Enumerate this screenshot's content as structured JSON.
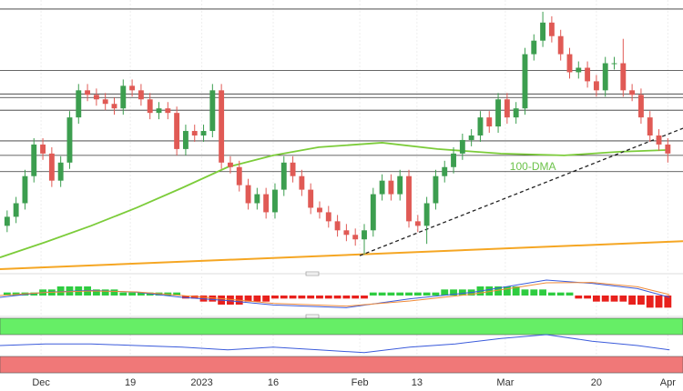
{
  "chart_data": [
    {
      "type": "candlestick",
      "xlim": [
        -0.8,
        75.7
      ],
      "ylim": [
        0,
        300
      ],
      "up_color": "#3c9e4f",
      "down_color": "#e05a55",
      "open": [
        50,
        60,
        75,
        105,
        140,
        130,
        100,
        120,
        170,
        200,
        195,
        190,
        185,
        180,
        205,
        200,
        190,
        175,
        180,
        175,
        135,
        155,
        150,
        155,
        200,
        120,
        115,
        95,
        75,
        85,
        65,
        90,
        120,
        105,
        90,
        70,
        65,
        55,
        45,
        40,
        35,
        45,
        85,
        100,
        85,
        105,
        55,
        50,
        75,
        105,
        115,
        130,
        145,
        150,
        170,
        160,
        190,
        170,
        180,
        240,
        255,
        275,
        260,
        240,
        220,
        225,
        210,
        200,
        230,
        230,
        200,
        195,
        170,
        150,
        140
      ],
      "high": [
        67,
        82,
        112,
        147,
        147,
        137,
        127,
        177,
        207,
        207,
        202,
        197,
        192,
        212,
        212,
        207,
        197,
        187,
        187,
        182,
        162,
        162,
        162,
        207,
        207,
        127,
        122,
        102,
        92,
        92,
        97,
        127,
        127,
        112,
        97,
        77,
        72,
        62,
        52,
        47,
        52,
        92,
        107,
        107,
        112,
        112,
        62,
        82,
        112,
        122,
        137,
        152,
        157,
        177,
        177,
        197,
        197,
        187,
        247,
        262,
        287,
        282,
        267,
        247,
        232,
        232,
        217,
        237,
        237,
        257,
        207,
        202,
        177,
        157,
        147
      ],
      "low": [
        43,
        53,
        68,
        98,
        123,
        93,
        93,
        113,
        163,
        188,
        183,
        178,
        173,
        173,
        193,
        183,
        168,
        168,
        168,
        128,
        128,
        143,
        143,
        148,
        113,
        108,
        88,
        68,
        68,
        58,
        58,
        83,
        98,
        83,
        63,
        58,
        48,
        38,
        33,
        28,
        18,
        38,
        78,
        78,
        78,
        48,
        43,
        30,
        68,
        98,
        108,
        123,
        138,
        143,
        153,
        153,
        163,
        163,
        173,
        233,
        248,
        253,
        233,
        213,
        213,
        203,
        193,
        193,
        223,
        193,
        188,
        163,
        143,
        133,
        120
      ],
      "close": [
        60,
        75,
        105,
        140,
        130,
        100,
        120,
        170,
        200,
        195,
        190,
        185,
        180,
        205,
        200,
        190,
        175,
        180,
        175,
        135,
        155,
        150,
        155,
        200,
        120,
        115,
        95,
        75,
        85,
        65,
        90,
        120,
        105,
        90,
        70,
        65,
        55,
        45,
        40,
        35,
        45,
        85,
        100,
        85,
        105,
        55,
        50,
        75,
        105,
        115,
        130,
        145,
        150,
        170,
        160,
        190,
        170,
        180,
        240,
        255,
        275,
        260,
        240,
        220,
        225,
        210,
        200,
        230,
        230,
        200,
        195,
        170,
        150,
        140,
        130
      ],
      "levels": [
        290,
        222,
        196,
        192,
        178,
        144,
        128,
        110
      ],
      "level_color": "#333333",
      "trendline": {
        "x": [
          39.5,
          75.7
        ],
        "values": [
          17,
          158
        ],
        "color": "#222222"
      },
      "support": {
        "x": [
          -0.8,
          75.7
        ],
        "values": [
          2,
          33
        ],
        "color": "#f5a623"
      },
      "ma": {
        "name": "100-DMA",
        "color": "#7ccc3a",
        "x": [
          -0.8,
          4.3,
          9.4,
          14.5,
          19.6,
          24.7,
          29.8,
          34.9,
          42.0,
          48.2,
          55.3,
          62.4,
          68.6,
          74.2
        ],
        "values": [
          15,
          32,
          50,
          70,
          92,
          115,
          128,
          137,
          142,
          135,
          130,
          128,
          132,
          134
        ]
      },
      "annotation": "100-DMA",
      "annotation_at": {
        "x": 56.3,
        "y": 115
      }
    },
    {
      "type": "bar",
      "xlim": [
        -0.8,
        75.7
      ],
      "ylim": [
        -6,
        6
      ],
      "up_color": "#2ecc40",
      "down_color": "#e8201c",
      "values": [
        1,
        1,
        1,
        1,
        2,
        2,
        3,
        3,
        3,
        3,
        2,
        2,
        2,
        1,
        1,
        1,
        1,
        1,
        1,
        1,
        -1,
        -1,
        -2,
        -2,
        -3,
        -3,
        -3,
        -2,
        -2,
        -2,
        -1,
        -1,
        -1,
        -1,
        -1,
        -1,
        -1,
        -1,
        -1,
        -1,
        -1,
        1,
        1,
        1,
        1,
        1,
        1,
        1,
        1,
        2,
        2,
        2,
        2,
        3,
        3,
        3,
        3,
        3,
        2,
        2,
        2,
        1,
        1,
        1,
        -1,
        -1,
        -2,
        -2,
        -2,
        -2,
        -3,
        -3,
        -4,
        -4,
        -4
      ],
      "series": [
        {
          "color": "#3b5bdb",
          "x": [
            -0.8,
            4.3,
            9.4,
            14.5,
            19.6,
            24.7,
            29.8,
            38.0,
            45.1,
            52.2,
            60.4,
            65.5,
            70.6,
            74.2
          ],
          "values": [
            -0.6,
            1.1,
            1.7,
            1.1,
            -0.6,
            -1.7,
            -3.1,
            -4,
            -1.1,
            1.1,
            5.1,
            4,
            2.3,
            -0.6
          ]
        },
        {
          "color": "#f08c3a",
          "x": [
            -0.8,
            4.3,
            9.4,
            14.5,
            19.6,
            24.7,
            29.8,
            38.0,
            45.1,
            52.2,
            60.4,
            65.5,
            70.6,
            74.2
          ],
          "values": [
            0,
            1.0,
            1.5,
            1.2,
            0,
            -1.2,
            -2.6,
            -3.5,
            -1.8,
            0.5,
            4.2,
            4.3,
            2.9,
            0.3
          ]
        }
      ]
    },
    {
      "type": "line",
      "xlim": [
        -0.8,
        75.7
      ],
      "ylim": [
        0,
        100
      ],
      "bands": [
        {
          "range": [
            70,
            100
          ],
          "color": "#66ee66"
        },
        {
          "range": [
            0,
            30
          ],
          "color": "#f07878"
        }
      ],
      "series": [
        {
          "color": "#3b5bdb",
          "x": [
            -0.8,
            4.3,
            9.4,
            14.5,
            19.6,
            24.7,
            29.8,
            34.9,
            40.0,
            45.1,
            50.2,
            55.3,
            60.4,
            65.5,
            70.6,
            74.2
          ],
          "values": [
            50,
            53,
            53,
            50,
            47,
            42,
            47,
            42,
            37,
            47,
            53,
            63,
            70,
            58,
            50,
            42
          ]
        }
      ],
      "xticks": [
        {
          "value": 3.8,
          "label": "Dec"
        },
        {
          "value": 13.8,
          "label": "19"
        },
        {
          "value": 21.8,
          "label": "2023"
        },
        {
          "value": 29.8,
          "label": "16"
        },
        {
          "value": 39.5,
          "label": "Feb"
        },
        {
          "value": 45.9,
          "label": "13"
        },
        {
          "value": 55.8,
          "label": "Mar"
        },
        {
          "value": 66.0,
          "label": "20"
        },
        {
          "value": 74.0,
          "label": "Apr"
        }
      ]
    }
  ]
}
